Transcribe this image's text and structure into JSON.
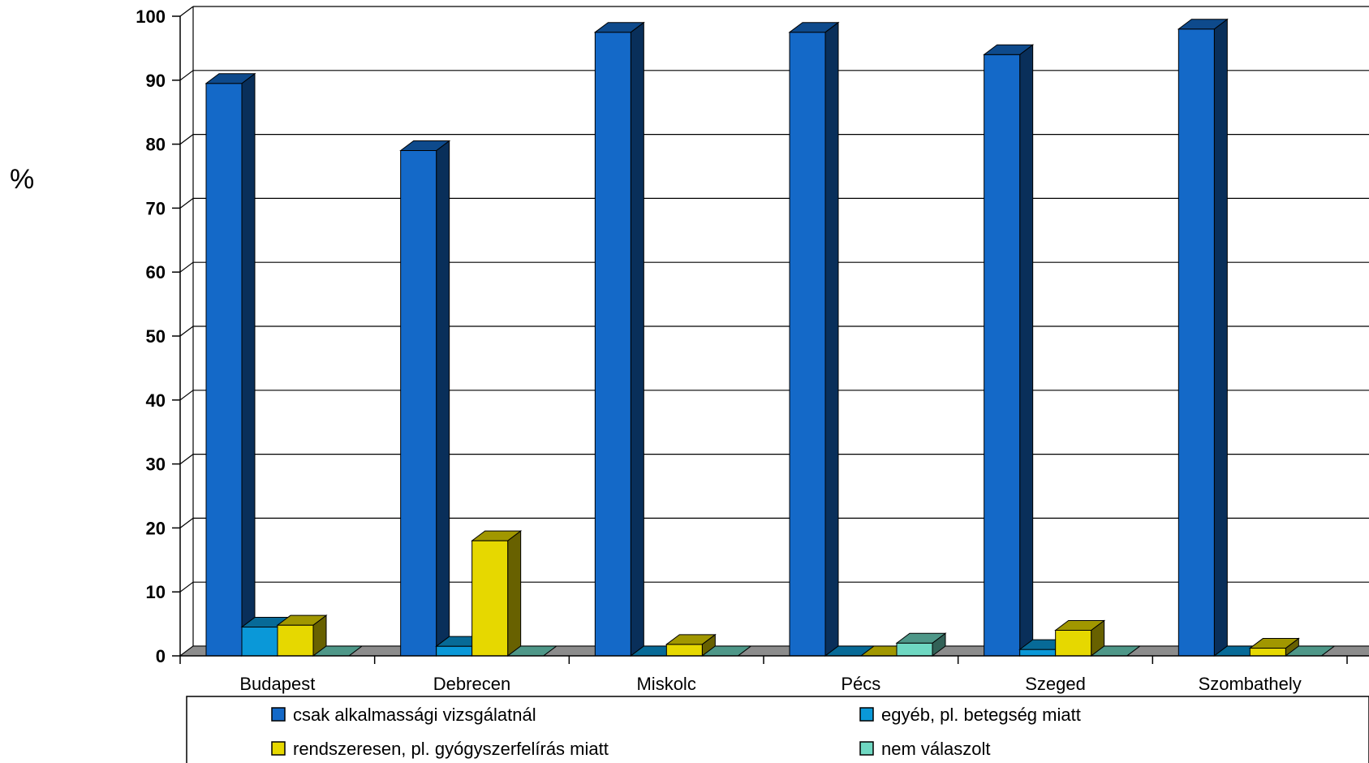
{
  "chart_data": {
    "type": "bar",
    "ylabel": "%",
    "ylim": [
      0,
      100
    ],
    "yticks": [
      "0",
      "10",
      "20",
      "30",
      "40",
      "50",
      "60",
      "70",
      "80",
      "90",
      "100"
    ],
    "categories": [
      "Budapest",
      "Debrecen",
      "Miskolc",
      "Pécs",
      "Szeged",
      "Szombathely"
    ],
    "series": [
      {
        "name": "csak alkalmassági vizsgálatnál",
        "color": "#1469c8",
        "values": [
          89.5,
          79,
          97.5,
          97.5,
          94,
          98
        ]
      },
      {
        "name": "egyéb, pl. betegség miatt",
        "color": "#0a98d8",
        "values": [
          4.5,
          1.5,
          0,
          0,
          1,
          0
        ]
      },
      {
        "name": "rendszeresen, pl. gyógyszerfelírás miatt",
        "color": "#e6d800",
        "values": [
          4.8,
          18,
          1.8,
          0,
          4,
          1.2
        ]
      },
      {
        "name": "nem válaszolt",
        "color": "#6fd8c2",
        "values": [
          0,
          0,
          0,
          2,
          0,
          0
        ]
      }
    ],
    "grid": true,
    "legend_position": "bottom",
    "style": "3d-clustered-column"
  }
}
